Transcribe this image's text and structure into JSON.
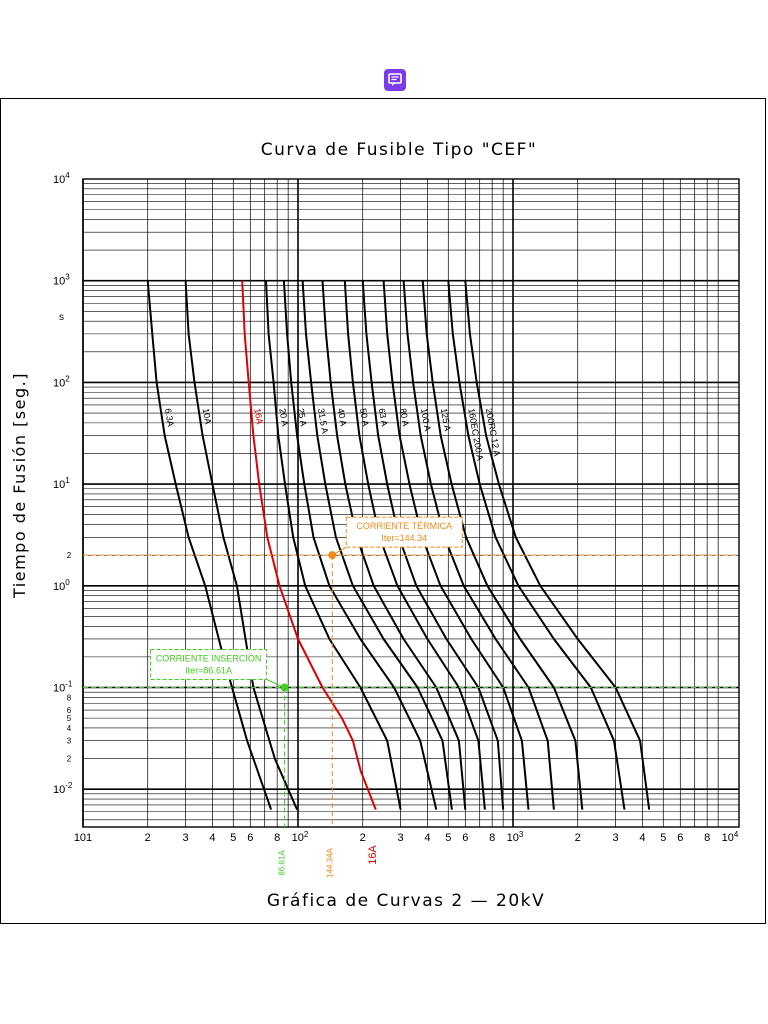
{
  "toolbar": {
    "comment_icon": "comment-icon"
  },
  "chart_data": {
    "type": "line",
    "title": "Curva de Fusible Tipo \"CEF\"",
    "subtitle": "Gráfica de Curvas 2 — 20kV",
    "ylabel": "Tiempo de Fusión [seg.]",
    "xlabel": "",
    "x_scale": "log",
    "y_scale": "log",
    "xlim": [
      10,
      10000
    ],
    "ylim": [
      0.005,
      10000
    ],
    "grid": true,
    "x_decade_labels": [
      "101",
      "10 2",
      "10 3",
      "10 4"
    ],
    "x_minor_labels": [
      "2",
      "3",
      "4",
      "5",
      "6",
      "8"
    ],
    "y_decade_labels": [
      "10 4",
      "10 3",
      "10 2",
      "10 1",
      "10 0",
      "10 -1",
      "10 -2"
    ],
    "y_unit_label": "s",
    "y_minor_labels": [
      "8",
      "6",
      "5",
      "4",
      "3",
      "2",
      "2"
    ],
    "series": [
      {
        "name": "6.3A",
        "color": "#000000",
        "x": [
          20,
          21,
          22,
          24,
          27,
          31,
          37,
          45,
          58,
          75
        ],
        "y": [
          1000,
          300,
          100,
          30,
          10,
          3,
          1,
          0.2,
          0.03,
          0.0063
        ]
      },
      {
        "name": "10A",
        "color": "#000000",
        "x": [
          30,
          31,
          33,
          36,
          40,
          45,
          52,
          62,
          78,
          99
        ],
        "y": [
          1000,
          300,
          100,
          30,
          10,
          3,
          1,
          0.1,
          0.02,
          0.0063
        ]
      },
      {
        "name": "16A",
        "color": "#e00000",
        "x": [
          55,
          56.5,
          59,
          62,
          66,
          72,
          82,
          100,
          130,
          160,
          180,
          196,
          230
        ],
        "y": [
          1000,
          300,
          100,
          30,
          10,
          3,
          1,
          0.3,
          0.1,
          0.05,
          0.03,
          0.015,
          0.0063
        ]
      },
      {
        "name": "20 A",
        "color": "#000000",
        "x": [
          71,
          73,
          77,
          81,
          87,
          95,
          108,
          140,
          195,
          260,
          300
        ],
        "y": [
          1000,
          300,
          100,
          30,
          10,
          3,
          1,
          0.3,
          0.1,
          0.03,
          0.0063
        ]
      },
      {
        "name": "25 A",
        "color": "#000000",
        "x": [
          86,
          89,
          93,
          99,
          107,
          118,
          140,
          195,
          280,
          370,
          440
        ],
        "y": [
          1000,
          300,
          100,
          30,
          10,
          3,
          1,
          0.3,
          0.1,
          0.03,
          0.0063
        ]
      },
      {
        "name": "31.5 A",
        "color": "#000000",
        "x": [
          105,
          109,
          115,
          123,
          134,
          150,
          180,
          250,
          360,
          470,
          520
        ],
        "y": [
          1000,
          300,
          100,
          30,
          10,
          3,
          1,
          0.3,
          0.1,
          0.03,
          0.0063
        ]
      },
      {
        "name": "40 A",
        "color": "#000000",
        "x": [
          130,
          135,
          142,
          152,
          166,
          188,
          225,
          310,
          440,
          560,
          600
        ],
        "y": [
          1000,
          300,
          100,
          30,
          10,
          3,
          1,
          0.3,
          0.1,
          0.03,
          0.0063
        ]
      },
      {
        "name": "50 A",
        "color": "#000000",
        "x": [
          165,
          171,
          180,
          193,
          212,
          240,
          290,
          400,
          560,
          690,
          740
        ],
        "y": [
          1000,
          300,
          100,
          30,
          10,
          3,
          1,
          0.3,
          0.1,
          0.03,
          0.0063
        ]
      },
      {
        "name": "63 A",
        "color": "#000000",
        "x": [
          200,
          208,
          220,
          236,
          260,
          295,
          355,
          490,
          690,
          850,
          900
        ],
        "y": [
          1000,
          300,
          100,
          30,
          10,
          3,
          1,
          0.3,
          0.1,
          0.03,
          0.0063
        ]
      },
      {
        "name": "80 A",
        "color": "#000000",
        "x": [
          250,
          260,
          275,
          297,
          330,
          378,
          460,
          640,
          900,
          1100,
          1180
        ],
        "y": [
          1000,
          300,
          100,
          30,
          10,
          3,
          1,
          0.3,
          0.1,
          0.03,
          0.0063
        ]
      },
      {
        "name": "100 A",
        "color": "#000000",
        "x": [
          310,
          323,
          343,
          372,
          415,
          480,
          590,
          830,
          1180,
          1450,
          1550
        ],
        "y": [
          1000,
          300,
          100,
          30,
          10,
          3,
          1,
          0.3,
          0.1,
          0.03,
          0.0063
        ]
      },
      {
        "name": "125 A",
        "color": "#000000",
        "x": [
          380,
          397,
          423,
          461,
          518,
          605,
          760,
          1080,
          1550,
          1950,
          2100
        ],
        "y": [
          1000,
          300,
          100,
          30,
          10,
          3,
          1,
          0.3,
          0.1,
          0.03,
          0.0063
        ]
      },
      {
        "name": "160EC 200 A",
        "color": "#000000",
        "x": [
          500,
          525,
          563,
          620,
          700,
          830,
          1060,
          1550,
          2300,
          2950,
          3300
        ],
        "y": [
          1000,
          300,
          100,
          30,
          10,
          3,
          1,
          0.3,
          0.1,
          0.03,
          0.0063
        ]
      },
      {
        "name": "200RC 12 A",
        "color": "#000000",
        "x": [
          600,
          630,
          678,
          750,
          860,
          1030,
          1340,
          2000,
          3000,
          3900,
          4300
        ],
        "y": [
          1000,
          300,
          100,
          30,
          10,
          3,
          1,
          0.3,
          0.1,
          0.03,
          0.0063
        ]
      }
    ],
    "annotations": [
      {
        "name": "corriente-termica",
        "color": "#f08a1a",
        "line1": "CORRIENTE TÉRMICA",
        "line2": "Iter=144.34",
        "x": 144.34,
        "y": 2,
        "axis_label": "144.34A"
      },
      {
        "name": "corriente-insercion",
        "color": "#44cc22",
        "line1": "CORRIENTE INSERCIÓN",
        "line2": "Iter=86.61A",
        "x": 86.61,
        "y": 0.1,
        "axis_label": "86.61A"
      }
    ],
    "bottom_series_label": "16A"
  }
}
